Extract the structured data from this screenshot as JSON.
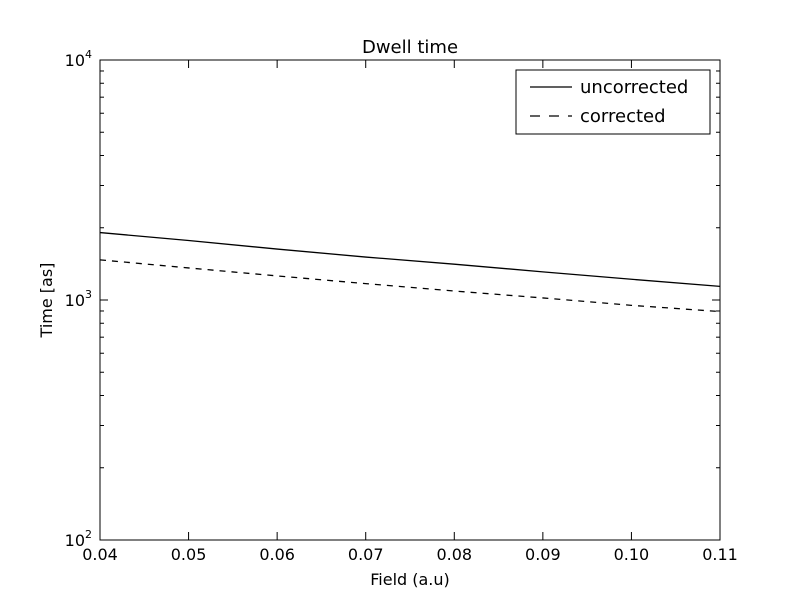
{
  "chart_data": {
    "type": "line",
    "title": "Dwell time",
    "xlabel": "Field (a.u)",
    "ylabel": "Time [as]",
    "xlim": [
      0.04,
      0.11
    ],
    "ylim": [
      100,
      10000
    ],
    "yscale": "log",
    "grid": false,
    "legend_position": "top-right",
    "x_ticks": [
      "0.04",
      "0.05",
      "0.06",
      "0.07",
      "0.08",
      "0.09",
      "0.10",
      "0.11"
    ],
    "y_ticks": [
      {
        "base": "10",
        "exp": "2",
        "value": 100
      },
      {
        "base": "10",
        "exp": "3",
        "value": 1000
      },
      {
        "base": "10",
        "exp": "4",
        "value": 10000
      }
    ],
    "series": [
      {
        "name": "uncorrected",
        "style": "solid",
        "color": "#000000",
        "x": [
          0.04,
          0.05,
          0.06,
          0.07,
          0.08,
          0.09,
          0.1,
          0.11
        ],
        "y": [
          1910,
          1770,
          1630,
          1510,
          1410,
          1310,
          1220,
          1140
        ]
      },
      {
        "name": "corrected",
        "style": "dashed",
        "color": "#000000",
        "x": [
          0.04,
          0.05,
          0.06,
          0.07,
          0.08,
          0.09,
          0.1,
          0.11
        ],
        "y": [
          1470,
          1360,
          1260,
          1170,
          1090,
          1020,
          950,
          895
        ]
      }
    ]
  }
}
